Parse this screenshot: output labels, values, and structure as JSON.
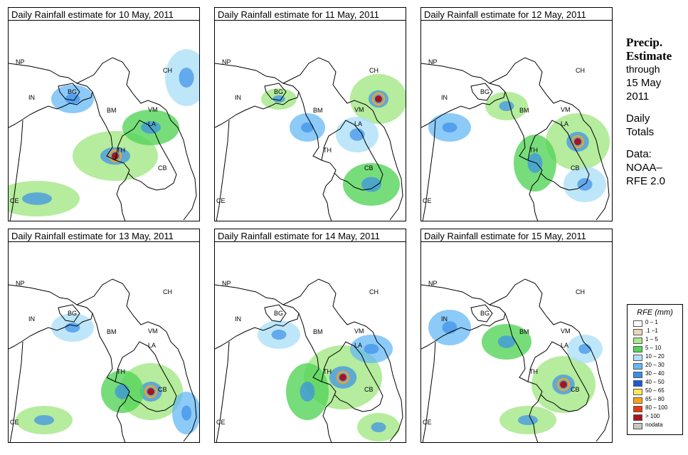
{
  "panels": [
    {
      "title": "Daily Rainfall estimate for  10 May, 2011"
    },
    {
      "title": "Daily Rainfall estimate for  11 May, 2011"
    },
    {
      "title": "Daily Rainfall estimate for  12 May, 2011"
    },
    {
      "title": "Daily Rainfall estimate for  13 May, 2011"
    },
    {
      "title": "Daily Rainfall estimate for  14 May, 2011"
    },
    {
      "title": "Daily Rainfall estimate for  15 May, 2011"
    }
  ],
  "country_labels": [
    "NP",
    "CH",
    "BG",
    "IN",
    "BM",
    "VM",
    "LA",
    "TH",
    "CB",
    "CE"
  ],
  "sidebar": {
    "head1": "Precip.",
    "head2": "Estimate",
    "line1": "through",
    "line2": "15 May",
    "line3": "2011",
    "line4": "Daily",
    "line5": "Totals",
    "line6": "Data:",
    "line7": "NOAA–",
    "line8": "RFE 2.0"
  },
  "legend": {
    "title": "RFE (mm)",
    "items": [
      {
        "label": "0 – 1",
        "color": "#ffffff"
      },
      {
        "label": ".1 –1",
        "color": "#e9d6b4"
      },
      {
        "label": "1 – 5",
        "color": "#a8e98c"
      },
      {
        "label": "5 – 10",
        "color": "#55d45a"
      },
      {
        "label": "10 – 20",
        "color": "#aee0f8"
      },
      {
        "label": "20 – 30",
        "color": "#66b8f5"
      },
      {
        "label": "30 – 40",
        "color": "#3a8ee8"
      },
      {
        "label": "40 – 50",
        "color": "#1a5ad6"
      },
      {
        "label": "50 – 65",
        "color": "#ffe85c"
      },
      {
        "label": "65 – 80",
        "color": "#ffa21a"
      },
      {
        "label": "80 – 100",
        "color": "#e83a10"
      },
      {
        "label": "> 100",
        "color": "#a8141a"
      },
      {
        "label": "nodata",
        "color": "#c8c8c0"
      }
    ]
  }
}
